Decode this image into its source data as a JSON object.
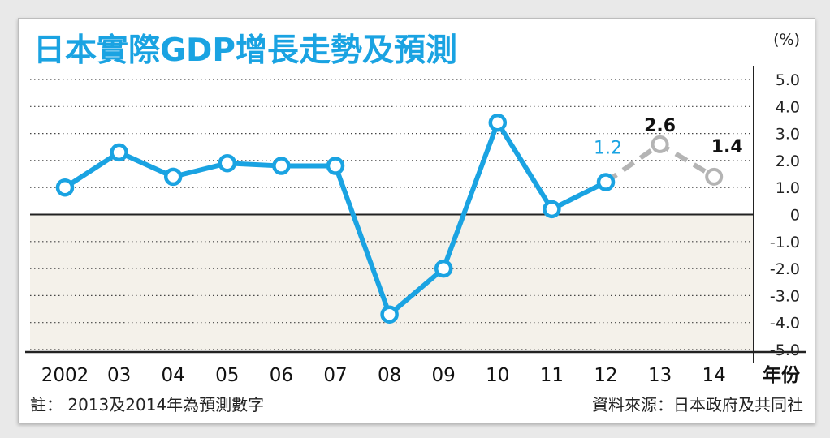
{
  "colors": {
    "actual": "#1aa3e2",
    "forecast": "#b4b4b4",
    "title": "#1aa3e2",
    "negative_band": "#f4f1ea"
  },
  "notes": {
    "left": "註：  2013及2014年為預測數字",
    "right": "資料來源：日本政府及共同社"
  },
  "chart_data": {
    "type": "line",
    "title": "日本實際GDP增長走勢及預測",
    "ylabel": "(%)",
    "xlabel": "年份",
    "categories": [
      "2002",
      "03",
      "04",
      "05",
      "06",
      "07",
      "08",
      "09",
      "10",
      "11",
      "12",
      "13",
      "14"
    ],
    "ylim": [
      -5.0,
      5.0
    ],
    "yticks": [
      "5.0",
      "4.0",
      "3.0",
      "2.0",
      "1.0",
      "0",
      "-1.0",
      "-2.0",
      "-3.0",
      "-4.0",
      "-5.0"
    ],
    "grid": true,
    "series": [
      {
        "kind": "actual",
        "values": [
          1.0,
          2.3,
          1.4,
          1.9,
          1.8,
          1.8,
          -3.7,
          -2.0,
          3.4,
          0.2,
          1.2,
          null,
          null
        ]
      },
      {
        "kind": "forecast",
        "values": [
          null,
          null,
          null,
          null,
          null,
          null,
          null,
          null,
          null,
          null,
          1.2,
          2.6,
          1.4
        ]
      }
    ],
    "data_labels": [
      {
        "index": 10,
        "text": "1.2",
        "series": "actual"
      },
      {
        "index": 11,
        "text": "2.6",
        "series": "forecast"
      },
      {
        "index": 12,
        "text": "1.4",
        "series": "forecast"
      }
    ]
  }
}
